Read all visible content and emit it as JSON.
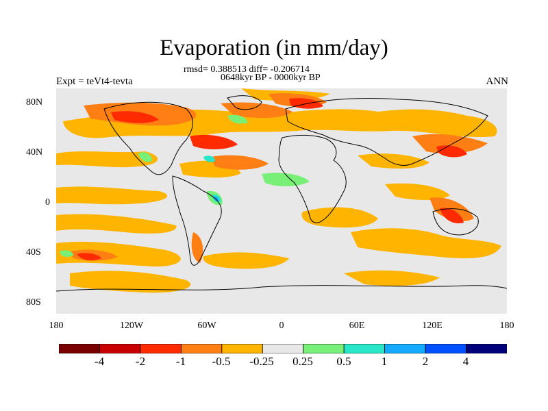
{
  "figure": {
    "title": "Evaporation (in mm/day)",
    "stats": "rmsd= 0.388513 diff= -0.206714",
    "period": "0648kyr BP - 0000kyr BP",
    "experiment": "Expt = teVt4-tevta",
    "season": "ANN"
  },
  "axes": {
    "lat_ticks": [
      "80N",
      "40N",
      "0",
      "40S",
      "80S"
    ],
    "lon_ticks": [
      "180",
      "120W",
      "60W",
      "0",
      "60E",
      "120E",
      "180"
    ]
  },
  "colorbar": {
    "colors": [
      "#7a0000",
      "#c80000",
      "#ff2a00",
      "#ff7f14",
      "#ffb400",
      "#e8e8e8",
      "#78f078",
      "#28e6c8",
      "#14aaff",
      "#0050ff",
      "#00007a"
    ],
    "labels": [
      "-4",
      "-2",
      "-1",
      "-0.5",
      "-0.25",
      "0.25",
      "0.5",
      "1",
      "2",
      "4"
    ]
  }
}
